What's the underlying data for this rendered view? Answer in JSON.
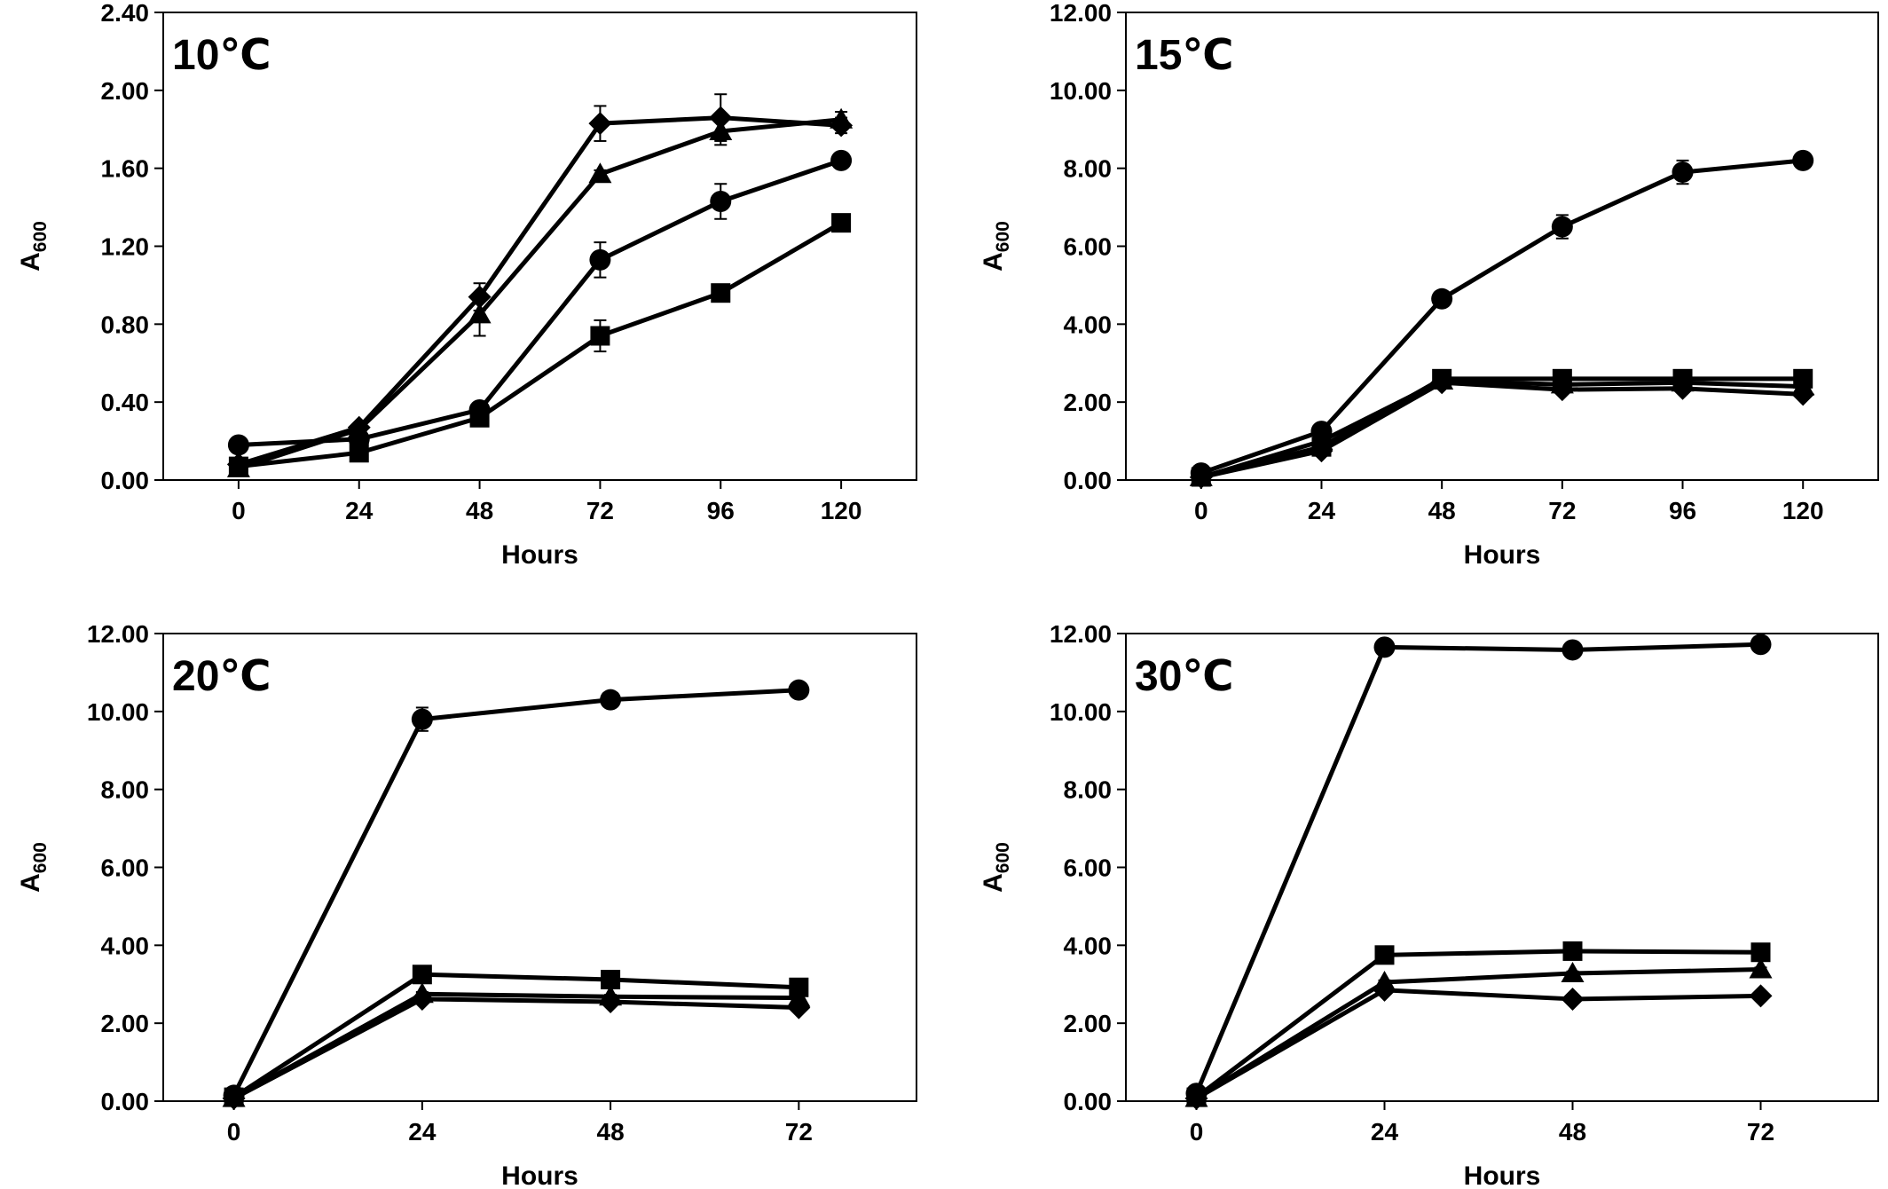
{
  "chart_data": [
    {
      "type": "line",
      "title": "10℃",
      "xlabel": "Hours",
      "ylabel": "A",
      "ylabel_subscript": "600",
      "x": [
        0,
        24,
        48,
        72,
        96,
        120
      ],
      "x_ticks": [
        "0",
        "24",
        "48",
        "72",
        "96",
        "120"
      ],
      "y_ticks": [
        "0.00",
        "0.40",
        "0.80",
        "1.20",
        "1.60",
        "2.00",
        "2.40"
      ],
      "xlim": [
        -15,
        135
      ],
      "ylim": [
        0,
        2.4
      ],
      "series": [
        {
          "marker": "circle",
          "values": [
            0.18,
            0.21,
            0.36,
            1.13,
            1.43,
            1.64
          ],
          "errors": [
            0.02,
            0.02,
            0.03,
            0.09,
            0.09,
            0.02
          ]
        },
        {
          "marker": "square",
          "values": [
            0.07,
            0.14,
            0.32,
            0.74,
            0.96,
            1.32
          ],
          "errors": [
            0.02,
            0.02,
            0.03,
            0.08,
            0.02,
            0.02
          ]
        },
        {
          "marker": "triangle",
          "values": [
            0.06,
            0.26,
            0.85,
            1.57,
            1.79,
            1.85
          ],
          "errors": [
            0.02,
            0.02,
            0.11,
            0.02,
            0.07,
            0.04
          ]
        },
        {
          "marker": "diamond",
          "values": [
            0.08,
            0.27,
            0.94,
            1.83,
            1.86,
            1.82
          ],
          "errors": [
            0.02,
            0.02,
            0.07,
            0.09,
            0.12,
            0.04
          ]
        }
      ]
    },
    {
      "type": "line",
      "title": "15℃",
      "xlabel": "Hours",
      "ylabel": "A",
      "ylabel_subscript": "600",
      "x": [
        0,
        24,
        48,
        72,
        96,
        120
      ],
      "x_ticks": [
        "0",
        "24",
        "48",
        "72",
        "96",
        "120"
      ],
      "y_ticks": [
        "0.00",
        "2.00",
        "4.00",
        "6.00",
        "8.00",
        "10.00",
        "12.00"
      ],
      "xlim": [
        -15,
        135
      ],
      "ylim": [
        0,
        12
      ],
      "series": [
        {
          "marker": "circle",
          "values": [
            0.18,
            1.25,
            4.65,
            6.5,
            7.9,
            8.2
          ],
          "errors": [
            0.05,
            0.05,
            0.1,
            0.3,
            0.3,
            0.1
          ]
        },
        {
          "marker": "square",
          "values": [
            0.08,
            0.85,
            2.6,
            2.6,
            2.6,
            2.6
          ],
          "errors": [
            0.03,
            0.05,
            0.05,
            0.05,
            0.05,
            0.05
          ]
        },
        {
          "marker": "triangle",
          "values": [
            0.07,
            1.0,
            2.55,
            2.45,
            2.5,
            2.4
          ],
          "errors": [
            0.03,
            0.05,
            0.05,
            0.05,
            0.05,
            0.05
          ]
        },
        {
          "marker": "diamond",
          "values": [
            0.07,
            0.75,
            2.5,
            2.32,
            2.35,
            2.2
          ],
          "errors": [
            0.03,
            0.05,
            0.05,
            0.05,
            0.05,
            0.05
          ]
        }
      ]
    },
    {
      "type": "line",
      "title": "20℃",
      "xlabel": "Hours",
      "ylabel": "A",
      "ylabel_subscript": "600",
      "x": [
        0,
        24,
        48,
        72
      ],
      "x_ticks": [
        "0",
        "24",
        "48",
        "72"
      ],
      "y_ticks": [
        "0.00",
        "2.00",
        "4.00",
        "6.00",
        "8.00",
        "10.00",
        "12.00"
      ],
      "xlim": [
        -9,
        87
      ],
      "ylim": [
        0,
        12
      ],
      "series": [
        {
          "marker": "circle",
          "values": [
            0.15,
            9.8,
            10.3,
            10.55
          ],
          "errors": [
            0.05,
            0.3,
            0.1,
            0.1
          ]
        },
        {
          "marker": "square",
          "values": [
            0.1,
            3.25,
            3.12,
            2.92
          ],
          "errors": [
            0.03,
            0.05,
            0.05,
            0.05
          ]
        },
        {
          "marker": "triangle",
          "values": [
            0.08,
            2.75,
            2.68,
            2.65
          ],
          "errors": [
            0.03,
            0.05,
            0.05,
            0.05
          ]
        },
        {
          "marker": "diamond",
          "values": [
            0.07,
            2.62,
            2.55,
            2.4
          ],
          "errors": [
            0.03,
            0.05,
            0.05,
            0.05
          ]
        }
      ]
    },
    {
      "type": "line",
      "title": "30℃",
      "xlabel": "Hours",
      "ylabel": "A",
      "ylabel_subscript": "600",
      "x": [
        0,
        24,
        48,
        72
      ],
      "x_ticks": [
        "0",
        "24",
        "48",
        "72"
      ],
      "y_ticks": [
        "0.00",
        "2.00",
        "4.00",
        "6.00",
        "8.00",
        "10.00",
        "12.00"
      ],
      "xlim": [
        -9,
        87
      ],
      "ylim": [
        0,
        12
      ],
      "series": [
        {
          "marker": "circle",
          "values": [
            0.2,
            11.65,
            11.58,
            11.72
          ],
          "errors": [
            0.05,
            0.1,
            0.1,
            0.1
          ]
        },
        {
          "marker": "square",
          "values": [
            0.1,
            3.75,
            3.85,
            3.82
          ],
          "errors": [
            0.03,
            0.05,
            0.05,
            0.05
          ]
        },
        {
          "marker": "triangle",
          "values": [
            0.08,
            3.05,
            3.28,
            3.38
          ],
          "errors": [
            0.03,
            0.05,
            0.05,
            0.05
          ]
        },
        {
          "marker": "diamond",
          "values": [
            0.07,
            2.85,
            2.62,
            2.7
          ],
          "errors": [
            0.03,
            0.05,
            0.05,
            0.05
          ]
        }
      ]
    }
  ]
}
